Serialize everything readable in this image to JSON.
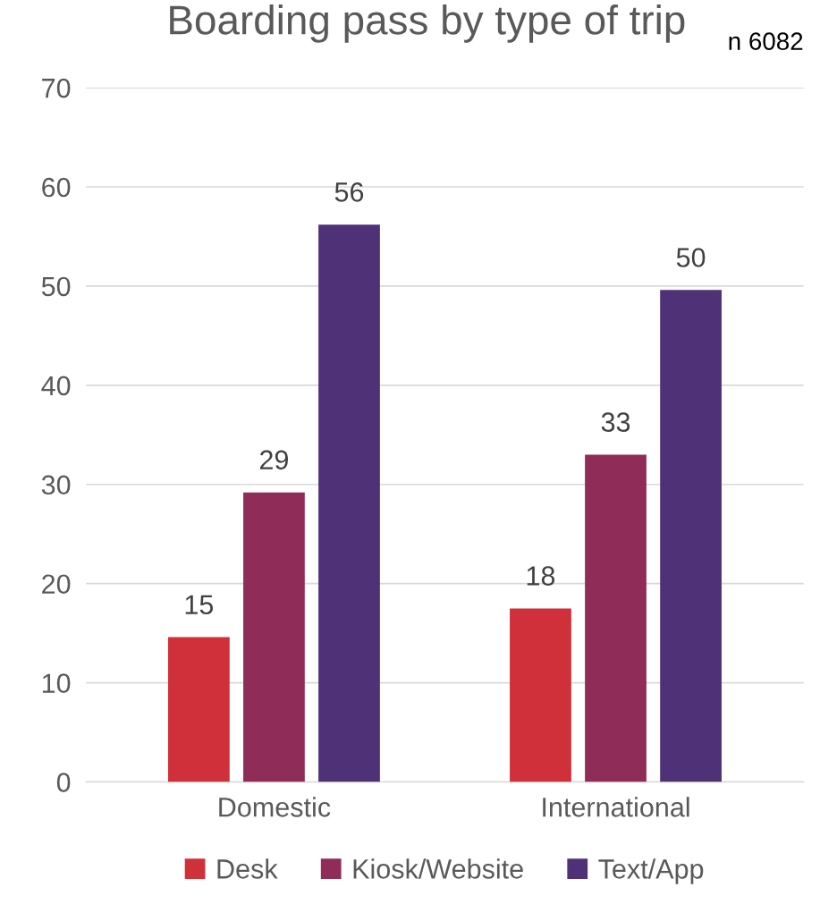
{
  "chart_data": {
    "type": "bar",
    "title": "Boarding pass by type of trip",
    "annotations": [
      "n 6082"
    ],
    "categories": [
      "Domestic",
      "International"
    ],
    "series": [
      {
        "name": "Desk",
        "color": "#d0303a",
        "values": [
          14.6,
          17.5
        ],
        "value_labels": [
          "15",
          "18"
        ]
      },
      {
        "name": "Kiosk/Website",
        "color": "#8f2d58",
        "values": [
          29.2,
          33.0
        ],
        "value_labels": [
          "29",
          "33"
        ]
      },
      {
        "name": "Text/App",
        "color": "#4f3177",
        "values": [
          56.2,
          49.6
        ],
        "value_labels": [
          "56",
          "50"
        ]
      }
    ],
    "ylim": [
      0,
      70
    ],
    "yticks": [
      0,
      10,
      20,
      30,
      40,
      50,
      60,
      70
    ],
    "grid": "y",
    "legend": "bottom"
  }
}
